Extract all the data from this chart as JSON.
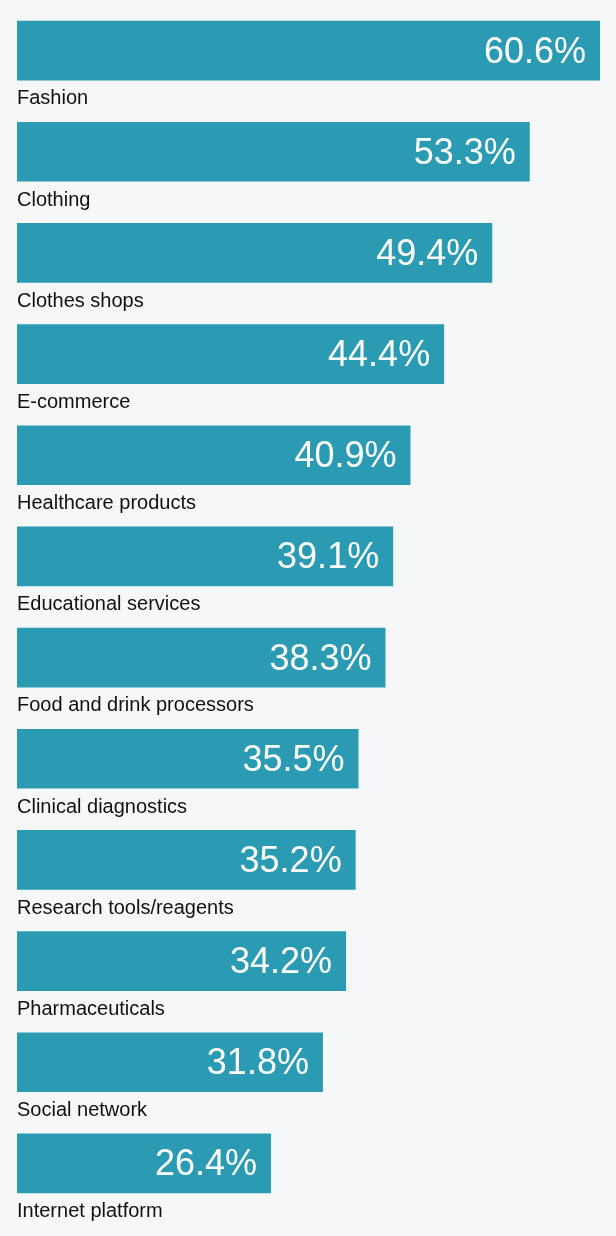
{
  "chart_data": {
    "type": "bar",
    "orientation": "horizontal",
    "data_labels": true,
    "legend": false,
    "tick_labels": false,
    "categories": [
      "Fashion",
      "Clothing",
      "Clothes shops",
      "E-commerce",
      "Healthcare products",
      "Educational services",
      "Food and drink processors",
      "Clinical diagnostics",
      "Research tools/reagents",
      "Pharmaceuticals",
      "Social network",
      "Internet platform"
    ],
    "values": [
      60.6,
      53.3,
      49.4,
      44.4,
      40.9,
      39.1,
      38.3,
      35.5,
      35.2,
      34.2,
      31.8,
      26.4
    ],
    "value_labels": [
      "60.6%",
      "53.3%",
      "49.4%",
      "44.4%",
      "40.9%",
      "39.1%",
      "38.3%",
      "35.5%",
      "35.2%",
      "34.2%",
      "31.8%",
      "26.4%"
    ],
    "color": "#2b9bb3"
  }
}
